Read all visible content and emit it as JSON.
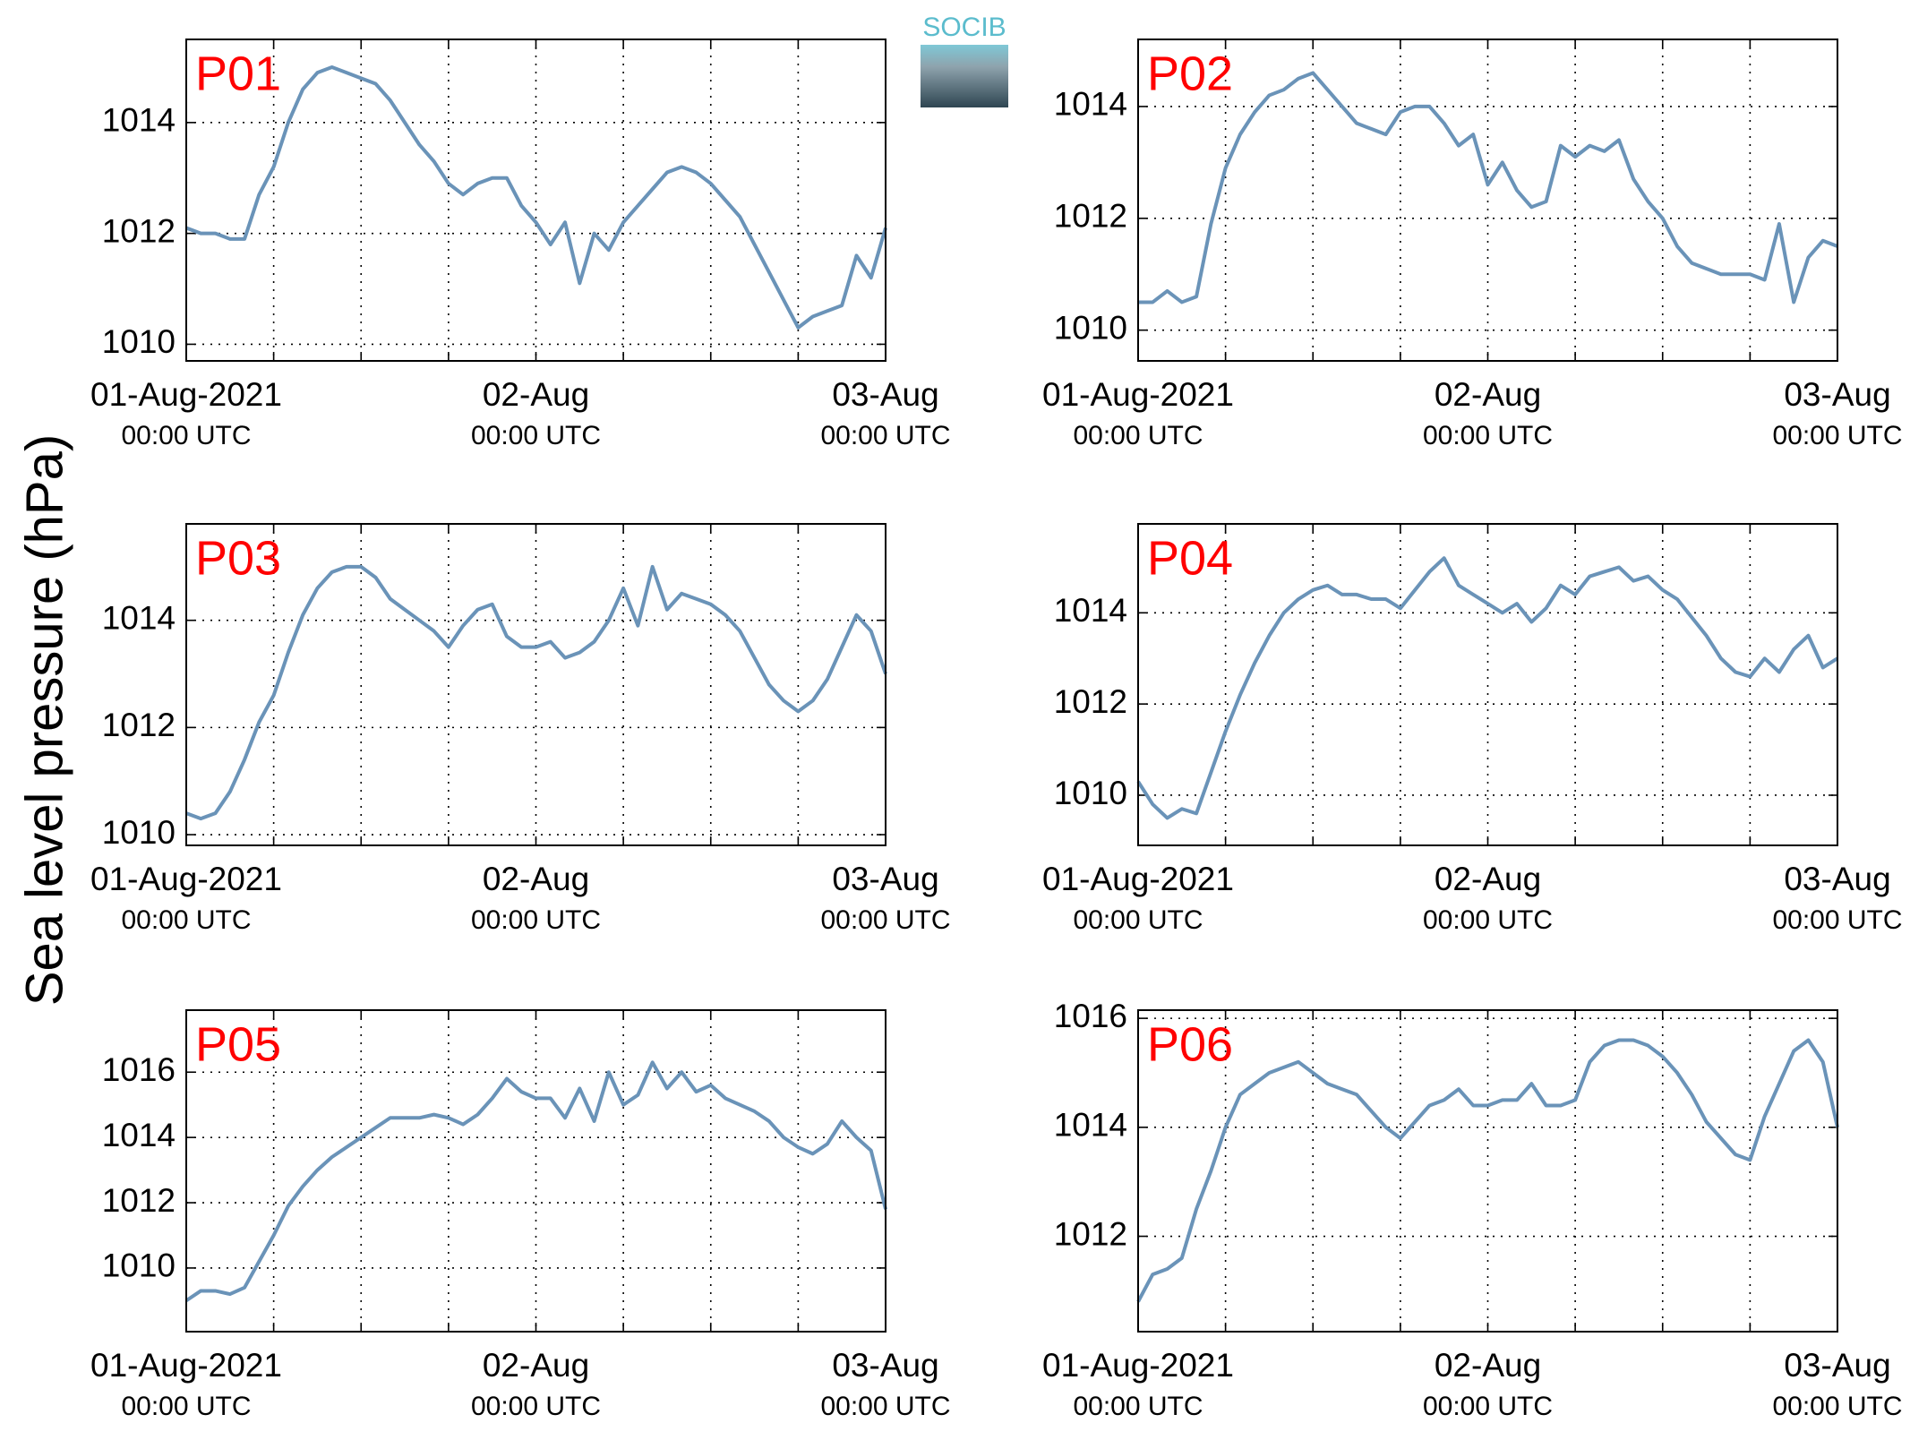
{
  "ylabel": "Sea level pressure (hPa)",
  "logo": "SOCIB",
  "chart_data": [
    {
      "type": "line",
      "title": "P01",
      "grid": true,
      "xlim": [
        0,
        48
      ],
      "ylim": [
        1009.7,
        1015.5
      ],
      "xticks": [
        {
          "value": 0,
          "label": "01-Aug-2021",
          "sublabel": "00:00 UTC"
        },
        {
          "value": 6,
          "label": null
        },
        {
          "value": 12,
          "label": null
        },
        {
          "value": 18,
          "label": null
        },
        {
          "value": 24,
          "label": "02-Aug",
          "sublabel": "00:00 UTC"
        },
        {
          "value": 30,
          "label": null
        },
        {
          "value": 36,
          "label": null
        },
        {
          "value": 42,
          "label": null
        },
        {
          "value": 48,
          "label": "03-Aug",
          "sublabel": "00:00 UTC"
        }
      ],
      "yticks": [
        1010,
        1012,
        1014
      ],
      "x": [
        0,
        1,
        2,
        3,
        4,
        5,
        6,
        7,
        8,
        9,
        10,
        11,
        12,
        13,
        14,
        15,
        16,
        17,
        18,
        19,
        20,
        21,
        22,
        23,
        24,
        25,
        26,
        27,
        28,
        29,
        30,
        31,
        32,
        33,
        34,
        35,
        36,
        37,
        38,
        39,
        40,
        41,
        42,
        43,
        44,
        45,
        46,
        47,
        48
      ],
      "series": [
        {
          "color": "#6a93b8",
          "values": [
            1012.1,
            1012.0,
            1012.0,
            1011.9,
            1011.9,
            1012.7,
            1013.2,
            1014.0,
            1014.6,
            1014.9,
            1015.0,
            1014.9,
            1014.8,
            1014.7,
            1014.4,
            1014.0,
            1013.6,
            1013.3,
            1012.9,
            1012.7,
            1012.9,
            1013.0,
            1013.0,
            1012.5,
            1012.2,
            1011.8,
            1012.2,
            1011.1,
            1012.0,
            1011.7,
            1012.2,
            1012.5,
            1012.8,
            1013.1,
            1013.2,
            1013.1,
            1012.9,
            1012.6,
            1012.3,
            1011.8,
            1011.3,
            1010.8,
            1010.3,
            1010.5,
            1010.6,
            1010.7,
            1011.6,
            1011.2,
            1012.1
          ]
        }
      ]
    },
    {
      "type": "line",
      "title": "P02",
      "grid": true,
      "xlim": [
        0,
        48
      ],
      "ylim": [
        1009.45,
        1015.2
      ],
      "xticks": [
        {
          "value": 0,
          "label": "01-Aug-2021",
          "sublabel": "00:00 UTC"
        },
        {
          "value": 6,
          "label": null
        },
        {
          "value": 12,
          "label": null
        },
        {
          "value": 18,
          "label": null
        },
        {
          "value": 24,
          "label": "02-Aug",
          "sublabel": "00:00 UTC"
        },
        {
          "value": 30,
          "label": null
        },
        {
          "value": 36,
          "label": null
        },
        {
          "value": 42,
          "label": null
        },
        {
          "value": 48,
          "label": "03-Aug",
          "sublabel": "00:00 UTC"
        }
      ],
      "yticks": [
        1010,
        1012,
        1014
      ],
      "x": [
        0,
        1,
        2,
        3,
        4,
        5,
        6,
        7,
        8,
        9,
        10,
        11,
        12,
        13,
        14,
        15,
        16,
        17,
        18,
        19,
        20,
        21,
        22,
        23,
        24,
        25,
        26,
        27,
        28,
        29,
        30,
        31,
        32,
        33,
        34,
        35,
        36,
        37,
        38,
        39,
        40,
        41,
        42,
        43,
        44,
        45,
        46,
        47,
        48
      ],
      "series": [
        {
          "color": "#6a93b8",
          "values": [
            1010.5,
            1010.5,
            1010.7,
            1010.5,
            1010.6,
            1011.9,
            1012.9,
            1013.5,
            1013.9,
            1014.2,
            1014.3,
            1014.5,
            1014.6,
            1014.3,
            1014.0,
            1013.7,
            1013.6,
            1013.5,
            1013.9,
            1014.0,
            1014.0,
            1013.7,
            1013.3,
            1013.5,
            1012.6,
            1013.0,
            1012.5,
            1012.2,
            1012.3,
            1013.3,
            1013.1,
            1013.3,
            1013.2,
            1013.4,
            1012.7,
            1012.3,
            1012.0,
            1011.5,
            1011.2,
            1011.1,
            1011.0,
            1011.0,
            1011.0,
            1010.9,
            1011.9,
            1010.5,
            1011.3,
            1011.6,
            1011.5
          ]
        }
      ]
    },
    {
      "type": "line",
      "title": "P03",
      "grid": true,
      "xlim": [
        0,
        48
      ],
      "ylim": [
        1009.8,
        1015.8
      ],
      "xticks": [
        {
          "value": 0,
          "label": "01-Aug-2021",
          "sublabel": "00:00 UTC"
        },
        {
          "value": 6,
          "label": null
        },
        {
          "value": 12,
          "label": null
        },
        {
          "value": 18,
          "label": null
        },
        {
          "value": 24,
          "label": "02-Aug",
          "sublabel": "00:00 UTC"
        },
        {
          "value": 30,
          "label": null
        },
        {
          "value": 36,
          "label": null
        },
        {
          "value": 42,
          "label": null
        },
        {
          "value": 48,
          "label": "03-Aug",
          "sublabel": "00:00 UTC"
        }
      ],
      "yticks": [
        1010,
        1012,
        1014
      ],
      "x": [
        0,
        1,
        2,
        3,
        4,
        5,
        6,
        7,
        8,
        9,
        10,
        11,
        12,
        13,
        14,
        15,
        16,
        17,
        18,
        19,
        20,
        21,
        22,
        23,
        24,
        25,
        26,
        27,
        28,
        29,
        30,
        31,
        32,
        33,
        34,
        35,
        36,
        37,
        38,
        39,
        40,
        41,
        42,
        43,
        44,
        45,
        46,
        47,
        48
      ],
      "series": [
        {
          "color": "#6a93b8",
          "values": [
            1010.4,
            1010.3,
            1010.4,
            1010.8,
            1011.4,
            1012.1,
            1012.6,
            1013.4,
            1014.1,
            1014.6,
            1014.9,
            1015.0,
            1015.0,
            1014.8,
            1014.4,
            1014.2,
            1014.0,
            1013.8,
            1013.5,
            1013.9,
            1014.2,
            1014.3,
            1013.7,
            1013.5,
            1013.5,
            1013.6,
            1013.3,
            1013.4,
            1013.6,
            1014.0,
            1014.6,
            1013.9,
            1015.0,
            1014.2,
            1014.5,
            1014.4,
            1014.3,
            1014.1,
            1013.8,
            1013.3,
            1012.8,
            1012.5,
            1012.3,
            1012.5,
            1012.9,
            1013.5,
            1014.1,
            1013.8,
            1013.0
          ]
        }
      ]
    },
    {
      "type": "line",
      "title": "P04",
      "grid": true,
      "xlim": [
        0,
        48
      ],
      "ylim": [
        1008.9,
        1015.95
      ],
      "xticks": [
        {
          "value": 0,
          "label": "01-Aug-2021",
          "sublabel": "00:00 UTC"
        },
        {
          "value": 6,
          "label": null
        },
        {
          "value": 12,
          "label": null
        },
        {
          "value": 18,
          "label": null
        },
        {
          "value": 24,
          "label": "02-Aug",
          "sublabel": "00:00 UTC"
        },
        {
          "value": 30,
          "label": null
        },
        {
          "value": 36,
          "label": null
        },
        {
          "value": 42,
          "label": null
        },
        {
          "value": 48,
          "label": "03-Aug",
          "sublabel": "00:00 UTC"
        }
      ],
      "yticks": [
        1010,
        1012,
        1014
      ],
      "x": [
        0,
        1,
        2,
        3,
        4,
        5,
        6,
        7,
        8,
        9,
        10,
        11,
        12,
        13,
        14,
        15,
        16,
        17,
        18,
        19,
        20,
        21,
        22,
        23,
        24,
        25,
        26,
        27,
        28,
        29,
        30,
        31,
        32,
        33,
        34,
        35,
        36,
        37,
        38,
        39,
        40,
        41,
        42,
        43,
        44,
        45,
        46,
        47,
        48
      ],
      "series": [
        {
          "color": "#6a93b8",
          "values": [
            1010.3,
            1009.8,
            1009.5,
            1009.7,
            1009.6,
            1010.5,
            1011.4,
            1012.2,
            1012.9,
            1013.5,
            1014.0,
            1014.3,
            1014.5,
            1014.6,
            1014.4,
            1014.4,
            1014.3,
            1014.3,
            1014.1,
            1014.5,
            1014.9,
            1015.2,
            1014.6,
            1014.4,
            1014.2,
            1014.0,
            1014.2,
            1013.8,
            1014.1,
            1014.6,
            1014.4,
            1014.8,
            1014.9,
            1015.0,
            1014.7,
            1014.8,
            1014.5,
            1014.3,
            1013.9,
            1013.5,
            1013.0,
            1012.7,
            1012.6,
            1013.0,
            1012.7,
            1013.2,
            1013.5,
            1012.8,
            1013.0
          ]
        }
      ]
    },
    {
      "type": "line",
      "title": "P05",
      "grid": true,
      "xlim": [
        0,
        48
      ],
      "ylim": [
        1008.05,
        1017.9
      ],
      "xticks": [
        {
          "value": 0,
          "label": "01-Aug-2021",
          "sublabel": "00:00 UTC"
        },
        {
          "value": 6,
          "label": null
        },
        {
          "value": 12,
          "label": null
        },
        {
          "value": 18,
          "label": null
        },
        {
          "value": 24,
          "label": "02-Aug",
          "sublabel": "00:00 UTC"
        },
        {
          "value": 30,
          "label": null
        },
        {
          "value": 36,
          "label": null
        },
        {
          "value": 42,
          "label": null
        },
        {
          "value": 48,
          "label": "03-Aug",
          "sublabel": "00:00 UTC"
        }
      ],
      "yticks": [
        1010,
        1012,
        1014,
        1016
      ],
      "x": [
        0,
        1,
        2,
        3,
        4,
        5,
        6,
        7,
        8,
        9,
        10,
        11,
        12,
        13,
        14,
        15,
        16,
        17,
        18,
        19,
        20,
        21,
        22,
        23,
        24,
        25,
        26,
        27,
        28,
        29,
        30,
        31,
        32,
        33,
        34,
        35,
        36,
        37,
        38,
        39,
        40,
        41,
        42,
        43,
        44,
        45,
        46,
        47,
        48
      ],
      "series": [
        {
          "color": "#6a93b8",
          "values": [
            1009.0,
            1009.3,
            1009.3,
            1009.2,
            1009.4,
            1010.2,
            1011.0,
            1011.9,
            1012.5,
            1013.0,
            1013.4,
            1013.7,
            1014.0,
            1014.3,
            1014.6,
            1014.6,
            1014.6,
            1014.7,
            1014.6,
            1014.4,
            1014.7,
            1015.2,
            1015.8,
            1015.4,
            1015.2,
            1015.2,
            1014.6,
            1015.5,
            1014.5,
            1016.0,
            1015.0,
            1015.3,
            1016.3,
            1015.5,
            1016.0,
            1015.4,
            1015.6,
            1015.2,
            1015.0,
            1014.8,
            1014.5,
            1014.0,
            1013.7,
            1013.5,
            1013.8,
            1014.5,
            1014.0,
            1013.6,
            1011.8
          ]
        }
      ]
    },
    {
      "type": "line",
      "title": "P06",
      "grid": true,
      "xlim": [
        0,
        48
      ],
      "ylim": [
        1010.25,
        1016.15
      ],
      "xticks": [
        {
          "value": 0,
          "label": "01-Aug-2021",
          "sublabel": "00:00 UTC"
        },
        {
          "value": 6,
          "label": null
        },
        {
          "value": 12,
          "label": null
        },
        {
          "value": 18,
          "label": null
        },
        {
          "value": 24,
          "label": "02-Aug",
          "sublabel": "00:00 UTC"
        },
        {
          "value": 30,
          "label": null
        },
        {
          "value": 36,
          "label": null
        },
        {
          "value": 42,
          "label": null
        },
        {
          "value": 48,
          "label": "03-Aug",
          "sublabel": "00:00 UTC"
        }
      ],
      "yticks": [
        1012,
        1014,
        1016
      ],
      "x": [
        0,
        1,
        2,
        3,
        4,
        5,
        6,
        7,
        8,
        9,
        10,
        11,
        12,
        13,
        14,
        15,
        16,
        17,
        18,
        19,
        20,
        21,
        22,
        23,
        24,
        25,
        26,
        27,
        28,
        29,
        30,
        31,
        32,
        33,
        34,
        35,
        36,
        37,
        38,
        39,
        40,
        41,
        42,
        43,
        44,
        45,
        46,
        47,
        48
      ],
      "series": [
        {
          "color": "#6a93b8",
          "values": [
            1010.8,
            1011.3,
            1011.4,
            1011.6,
            1012.5,
            1013.2,
            1014.0,
            1014.6,
            1014.8,
            1015.0,
            1015.1,
            1015.2,
            1015.0,
            1014.8,
            1014.7,
            1014.6,
            1014.3,
            1014.0,
            1013.8,
            1014.1,
            1014.4,
            1014.5,
            1014.7,
            1014.4,
            1014.4,
            1014.5,
            1014.5,
            1014.8,
            1014.4,
            1014.4,
            1014.5,
            1015.2,
            1015.5,
            1015.6,
            1015.6,
            1015.5,
            1015.3,
            1015.0,
            1014.6,
            1014.1,
            1013.8,
            1013.5,
            1013.4,
            1014.2,
            1014.8,
            1015.4,
            1015.6,
            1015.2,
            1014.0
          ]
        }
      ]
    }
  ]
}
